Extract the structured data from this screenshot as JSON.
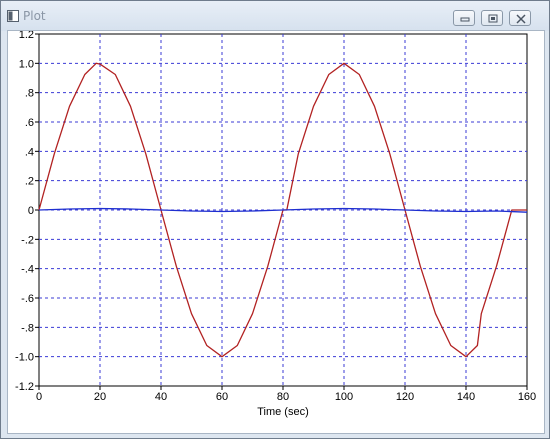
{
  "window": {
    "title": "Plot",
    "buttons": [
      "minimize-icon",
      "restore-icon",
      "close-icon"
    ],
    "frame_color": "#dde6f0"
  },
  "chart_data": {
    "type": "line",
    "title": "",
    "xlabel": "Time (sec)",
    "ylabel": "",
    "xlim": [
      0,
      160
    ],
    "ylim": [
      -1.2,
      1.2
    ],
    "grid": true,
    "grid_color": "#3b3bd6",
    "x_ticks": [
      0,
      20,
      40,
      60,
      80,
      100,
      120,
      140,
      160
    ],
    "x_tick_labels": [
      "0",
      "20",
      "40",
      "60",
      "80",
      "100",
      "120",
      "140",
      "160"
    ],
    "y_ticks": [
      1.2,
      1.0,
      0.8,
      0.6,
      0.4,
      0.2,
      0,
      -0.2,
      -0.4,
      -0.6,
      -0.8,
      -1.0,
      -1.2
    ],
    "y_tick_labels": [
      "1.2",
      "1.0",
      ".8",
      ".6",
      ".4",
      ".2",
      "0",
      "-.2",
      "-.4",
      "-.6",
      "-.8",
      "-1.0",
      "-1.2"
    ],
    "series": [
      {
        "color": "#b22222",
        "x": [
          0,
          5,
          10,
          15,
          18.75,
          20,
          25,
          30,
          35,
          40,
          45,
          50,
          55,
          60,
          65,
          70,
          75,
          80,
          81.25,
          85,
          90,
          95,
          100,
          105,
          110,
          115,
          120,
          125,
          130,
          135,
          140,
          143.75,
          145,
          150,
          155,
          160
        ],
        "y": [
          0.0,
          0.383,
          0.707,
          0.924,
          1.0,
          0.995,
          0.924,
          0.707,
          0.383,
          0.0,
          -0.383,
          -0.707,
          -0.924,
          -1.0,
          -0.924,
          -0.707,
          -0.383,
          0.0,
          0.0,
          0.383,
          0.707,
          0.924,
          1.0,
          0.924,
          0.707,
          0.383,
          0.0,
          -0.383,
          -0.707,
          -0.924,
          -1.0,
          -0.924,
          -0.707,
          -0.383,
          0.0,
          0.0
        ]
      },
      {
        "color": "#1f2fd0",
        "x": [
          0,
          10,
          20,
          30,
          40,
          50,
          60,
          70,
          80,
          90,
          100,
          110,
          120,
          130,
          140,
          150,
          160
        ],
        "y": [
          0.0,
          0.007,
          0.01,
          0.007,
          0.0,
          -0.007,
          -0.01,
          -0.007,
          0.0,
          0.007,
          0.01,
          0.007,
          0.0,
          -0.007,
          -0.01,
          -0.007,
          -0.015
        ]
      }
    ]
  }
}
